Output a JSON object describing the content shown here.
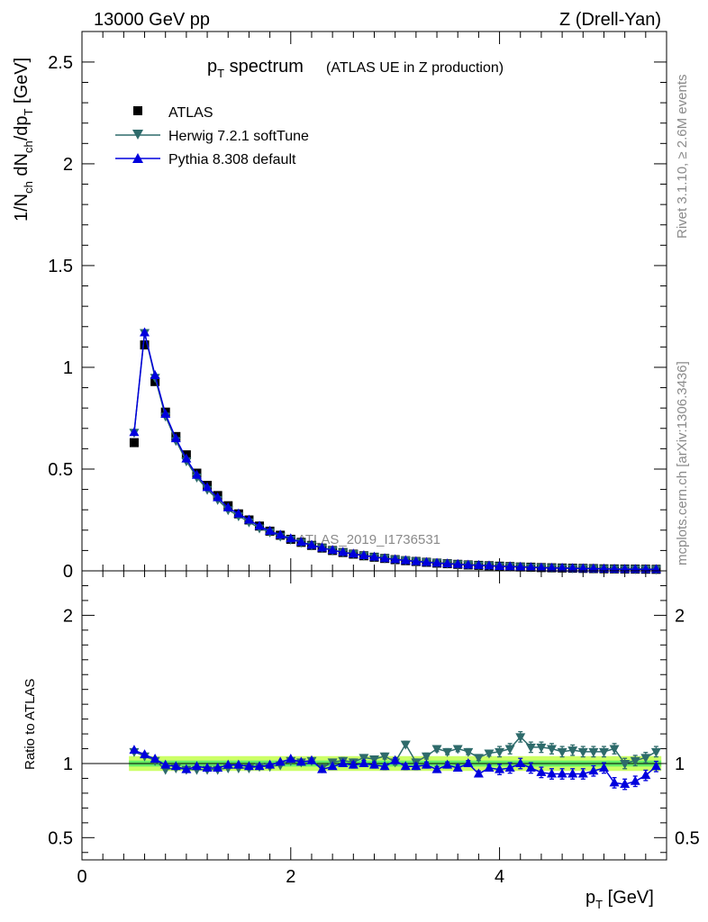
{
  "header": {
    "left": "13000 GeV pp",
    "right": "Z (Drell-Yan)"
  },
  "side_labels": {
    "top": "Rivet 3.1.10, ≥ 2.6M events",
    "bottom": "mcplots.cern.ch [arXiv:1306.3436]"
  },
  "colors": {
    "data": "#000000",
    "herwig": "#2e6b6b",
    "pythia": "#0000dd",
    "band_outer": "#ccff66",
    "band_inner": "#66ee66"
  },
  "chart_data": [
    {
      "type": "line",
      "title_main": "p",
      "title_main_sub": "T",
      "title_main_rest": " spectrum",
      "title_paren": "(ATLAS UE in Z production)",
      "watermark": "ATLAS_2019_I1736531",
      "ylabel": "1/N",
      "ylabel_sub1": "ch",
      "ylabel_mid": " dN",
      "ylabel_sub2": "ch",
      "ylabel_mid2": "/dp",
      "ylabel_sub3": "T",
      "ylabel_unit": " [GeV]",
      "xlim": [
        0,
        5.6
      ],
      "ylim": [
        0,
        2.65
      ],
      "yticks": [
        0,
        0.5,
        1,
        1.5,
        2,
        2.5
      ],
      "ytick_labels": [
        "0",
        "0.5",
        "1",
        "1.5",
        "2",
        "2.5"
      ],
      "legend_position": "top-left",
      "x": [
        0.5,
        0.6,
        0.7,
        0.8,
        0.9,
        1.0,
        1.1,
        1.2,
        1.3,
        1.4,
        1.5,
        1.6,
        1.7,
        1.8,
        1.9,
        2.0,
        2.1,
        2.2,
        2.3,
        2.4,
        2.5,
        2.6,
        2.7,
        2.8,
        2.9,
        3.0,
        3.1,
        3.2,
        3.3,
        3.4,
        3.5,
        3.6,
        3.7,
        3.8,
        3.9,
        4.0,
        4.1,
        4.2,
        4.3,
        4.4,
        4.5,
        4.6,
        4.7,
        4.8,
        4.9,
        5.0,
        5.1,
        5.2,
        5.3,
        5.4,
        5.5
      ],
      "series": [
        {
          "name": "ATLAS",
          "marker": "square",
          "values": [
            0.63,
            1.11,
            0.93,
            0.78,
            0.66,
            0.57,
            0.48,
            0.42,
            0.37,
            0.32,
            0.28,
            0.25,
            0.22,
            0.195,
            0.175,
            0.155,
            0.14,
            0.125,
            0.112,
            0.1,
            0.09,
            0.082,
            0.074,
            0.067,
            0.061,
            0.055,
            0.05,
            0.046,
            0.042,
            0.038,
            0.035,
            0.032,
            0.029,
            0.027,
            0.025,
            0.023,
            0.021,
            0.019,
            0.018,
            0.016,
            0.015,
            0.014,
            0.013,
            0.012,
            0.011,
            0.01,
            0.0095,
            0.009,
            0.0085,
            0.008,
            0.0075
          ]
        },
        {
          "name": "Herwig 7.2.1 softTune",
          "marker": "triangle-down",
          "values": [
            0.68,
            1.17,
            0.95,
            0.76,
            0.64,
            0.54,
            0.46,
            0.4,
            0.35,
            0.3,
            0.27,
            0.24,
            0.21,
            0.19,
            0.17,
            0.155,
            0.14,
            0.126,
            0.114,
            0.102,
            0.092,
            0.084,
            0.076,
            0.069,
            0.063,
            0.057,
            0.053,
            0.048,
            0.044,
            0.041,
            0.037,
            0.034,
            0.031,
            0.028,
            0.026,
            0.024,
            0.022,
            0.021,
            0.019,
            0.017,
            0.016,
            0.015,
            0.014,
            0.013,
            0.012,
            0.011,
            0.0105,
            0.0098,
            0.0092,
            0.0087,
            0.0082
          ]
        },
        {
          "name": "Pythia 8.308 default",
          "marker": "triangle-up",
          "values": [
            0.68,
            1.17,
            0.96,
            0.77,
            0.65,
            0.55,
            0.47,
            0.41,
            0.36,
            0.31,
            0.28,
            0.25,
            0.22,
            0.195,
            0.176,
            0.158,
            0.141,
            0.126,
            0.113,
            0.101,
            0.091,
            0.083,
            0.075,
            0.068,
            0.061,
            0.056,
            0.051,
            0.046,
            0.042,
            0.038,
            0.035,
            0.032,
            0.029,
            0.027,
            0.025,
            0.022,
            0.021,
            0.019,
            0.017,
            0.015,
            0.014,
            0.013,
            0.012,
            0.011,
            0.0105,
            0.0095,
            0.0085,
            0.008,
            0.0075,
            0.0072,
            0.0072
          ]
        }
      ]
    },
    {
      "type": "line",
      "ylabel": "Ratio to ATLAS",
      "xlabel": "p",
      "xlabel_sub": "T",
      "xlabel_unit": " [GeV]",
      "xlim": [
        0,
        5.6
      ],
      "ylim": [
        0.35,
        2.3
      ],
      "xticks": [
        0,
        2,
        4
      ],
      "xtick_labels": [
        "0",
        "2",
        "4"
      ],
      "yticks": [
        0.5,
        1,
        2
      ],
      "ytick_labels": [
        "0.5",
        "1",
        "2"
      ],
      "x": [
        0.5,
        0.6,
        0.7,
        0.8,
        0.9,
        1.0,
        1.1,
        1.2,
        1.3,
        1.4,
        1.5,
        1.6,
        1.7,
        1.8,
        1.9,
        2.0,
        2.1,
        2.2,
        2.3,
        2.4,
        2.5,
        2.6,
        2.7,
        2.8,
        2.9,
        3.0,
        3.1,
        3.2,
        3.3,
        3.4,
        3.5,
        3.6,
        3.7,
        3.8,
        3.9,
        4.0,
        4.1,
        4.2,
        4.3,
        4.4,
        4.5,
        4.6,
        4.7,
        4.8,
        4.9,
        5.0,
        5.1,
        5.2,
        5.3,
        5.4,
        5.5
      ],
      "band_inner": 0.02,
      "band_outer": 0.05,
      "series": [
        {
          "name": "Herwig 7.2.1 softTune",
          "marker": "triangle-down",
          "values": [
            1.08,
            1.05,
            1.02,
            0.96,
            0.97,
            0.96,
            0.96,
            0.96,
            0.96,
            0.97,
            0.97,
            0.97,
            0.98,
            0.98,
            0.99,
            1.02,
            1.01,
            1.02,
            0.97,
            1.01,
            1.02,
            1.01,
            1.04,
            1.03,
            1.05,
            1.01,
            1.13,
            1.01,
            1.05,
            1.1,
            1.08,
            1.1,
            1.08,
            1.04,
            1.07,
            1.08,
            1.1,
            1.18,
            1.11,
            1.11,
            1.1,
            1.08,
            1.09,
            1.08,
            1.08,
            1.08,
            1.1,
            1.0,
            1.02,
            1.04,
            1.08
          ]
        },
        {
          "name": "Pythia 8.308 default",
          "marker": "triangle-up",
          "values": [
            1.09,
            1.06,
            1.03,
            0.99,
            0.98,
            0.96,
            0.98,
            0.97,
            0.97,
            0.99,
            0.99,
            0.98,
            0.98,
            0.99,
            1.01,
            1.03,
            1.01,
            1.02,
            0.96,
            0.98,
            1.0,
            0.99,
            1.0,
            0.99,
            0.98,
            1.02,
            0.98,
            0.98,
            0.99,
            0.96,
            0.99,
            0.97,
            1.0,
            0.93,
            0.97,
            0.96,
            0.97,
            1.0,
            0.97,
            0.94,
            0.93,
            0.93,
            0.93,
            0.93,
            0.95,
            0.97,
            0.87,
            0.86,
            0.88,
            0.92,
            0.98
          ]
        }
      ]
    }
  ]
}
